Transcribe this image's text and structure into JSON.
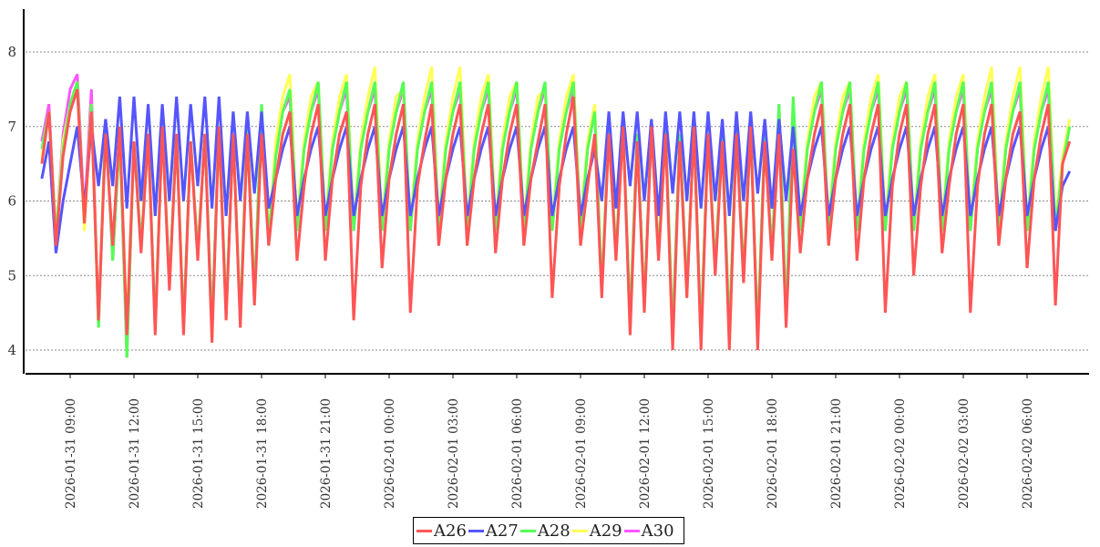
{
  "chart_data": {
    "type": "line",
    "title": "",
    "xlabel": "",
    "ylabel": "",
    "x_start": "2026-01-31 07:40",
    "x_step_minutes": 20,
    "ylim": [
      3.68,
      8.57
    ],
    "yticks": [
      "4",
      "5",
      "6",
      "7",
      "8"
    ],
    "ytick_values": [
      4,
      5,
      6,
      7,
      8
    ],
    "xticks": [
      "2026-01-31 09:00",
      "2026-01-31 12:00",
      "2026-01-31 15:00",
      "2026-01-31 18:00",
      "2026-01-31 21:00",
      "2026-02-01 00:00",
      "2026-02-01 03:00",
      "2026-02-01 06:00",
      "2026-02-01 09:00",
      "2026-02-01 12:00",
      "2026-02-01 15:00",
      "2026-02-01 18:00",
      "2026-02-01 21:00",
      "2026-02-02 00:00",
      "2026-02-02 03:00",
      "2026-02-02 06:00"
    ],
    "grid": "horizontal-dotted",
    "legend_position": "bottom-center",
    "series": [
      {
        "name": "A30",
        "color": "#ff55ff",
        "values": [
          6.8,
          7.3,
          5.5,
          6.9,
          7.5,
          7.7,
          5.8,
          7.5,
          4.3,
          7.0,
          5.2,
          6.9,
          3.9,
          6.8,
          5.4,
          6.9,
          4.3,
          7.0,
          4.9,
          6.9,
          4.3,
          6.8,
          5.3,
          6.9,
          4.3,
          7.0,
          4.5,
          6.9,
          4.4,
          7.0,
          4.7,
          7.2,
          5.5,
          6.6,
          7.2,
          7.4,
          5.6,
          6.7,
          7.2,
          7.5,
          5.6,
          6.7,
          7.2,
          7.5,
          5.6,
          6.7,
          7.2,
          7.5,
          5.6,
          6.7,
          7.2,
          7.5,
          5.6,
          6.7,
          7.2,
          7.5,
          5.6,
          6.7,
          7.2,
          7.5,
          5.6,
          6.7,
          7.2,
          7.5,
          5.6,
          6.7,
          7.2,
          7.5,
          5.6,
          6.7,
          7.2,
          7.5,
          5.6,
          6.7,
          7.2,
          7.5,
          5.6,
          6.7,
          7.2,
          4.8,
          7.0,
          5.3,
          7.0,
          4.4,
          6.9,
          4.6,
          7.0,
          5.3,
          7.0,
          4.2,
          6.9,
          4.8,
          7.0,
          4.2,
          6.9,
          5.1,
          6.9,
          4.2,
          7.0,
          5.0,
          7.0,
          4.2,
          6.9,
          5.3,
          7.3,
          4.4,
          7.3,
          5.6,
          6.7,
          7.2,
          7.5,
          5.6,
          6.7,
          7.2,
          7.5,
          5.6,
          6.7,
          7.2,
          7.5,
          5.6,
          6.7,
          7.2,
          7.5,
          5.6,
          6.7,
          7.2,
          7.5,
          5.6,
          6.7,
          7.2,
          7.5,
          5.6,
          6.7,
          7.2,
          7.5,
          5.6,
          6.7,
          7.2,
          7.5,
          5.6,
          6.7,
          7.2,
          7.5,
          5.6,
          6.5,
          7.0
        ]
      },
      {
        "name": "A29",
        "color": "#ffff55",
        "values": [
          6.6,
          7.2,
          5.5,
          6.8,
          7.3,
          7.6,
          5.6,
          7.3,
          4.4,
          7.0,
          5.3,
          6.9,
          4.3,
          6.8,
          5.4,
          6.9,
          4.3,
          7.0,
          4.9,
          6.9,
          4.3,
          6.8,
          5.3,
          6.9,
          4.2,
          7.0,
          4.5,
          6.9,
          4.4,
          7.0,
          4.7,
          7.1,
          5.5,
          6.8,
          7.4,
          7.7,
          5.7,
          6.8,
          7.4,
          7.6,
          5.7,
          6.8,
          7.4,
          7.7,
          5.7,
          6.8,
          7.4,
          7.8,
          5.7,
          6.8,
          7.4,
          7.5,
          5.7,
          6.8,
          7.4,
          7.8,
          5.7,
          6.8,
          7.4,
          7.8,
          5.7,
          6.8,
          7.4,
          7.7,
          5.7,
          6.8,
          7.4,
          7.6,
          5.7,
          6.8,
          7.4,
          7.5,
          5.7,
          6.8,
          7.4,
          7.7,
          5.7,
          6.8,
          7.3,
          4.8,
          7.0,
          5.3,
          7.0,
          4.4,
          6.9,
          4.6,
          7.0,
          5.3,
          7.0,
          4.2,
          6.9,
          4.8,
          7.0,
          4.2,
          6.9,
          5.1,
          6.9,
          4.2,
          7.0,
          5.0,
          7.0,
          4.2,
          6.9,
          5.3,
          7.2,
          4.4,
          7.3,
          5.7,
          6.8,
          7.4,
          7.6,
          5.7,
          6.8,
          7.4,
          7.6,
          5.7,
          6.8,
          7.4,
          7.7,
          5.7,
          6.8,
          7.4,
          7.6,
          5.7,
          6.8,
          7.4,
          7.7,
          5.7,
          6.8,
          7.4,
          7.7,
          5.7,
          6.8,
          7.4,
          7.8,
          5.7,
          6.8,
          7.4,
          7.8,
          5.7,
          6.8,
          7.4,
          7.8,
          5.7,
          6.6,
          7.1
        ]
      },
      {
        "name": "A28",
        "color": "#55ff55",
        "values": [
          6.7,
          7.2,
          5.5,
          6.7,
          7.3,
          7.6,
          5.7,
          7.3,
          4.3,
          7.1,
          5.2,
          6.9,
          3.9,
          6.8,
          5.4,
          6.9,
          4.3,
          7.0,
          4.9,
          6.9,
          4.3,
          6.8,
          5.3,
          6.9,
          4.3,
          7.0,
          4.5,
          6.9,
          4.4,
          7.0,
          4.7,
          7.3,
          5.5,
          6.6,
          7.2,
          7.5,
          5.6,
          6.7,
          7.2,
          7.6,
          5.6,
          6.7,
          7.2,
          7.6,
          5.6,
          6.7,
          7.2,
          7.6,
          5.6,
          6.7,
          7.2,
          7.6,
          5.6,
          6.7,
          7.2,
          7.6,
          5.6,
          6.7,
          7.2,
          7.6,
          5.6,
          6.7,
          7.2,
          7.6,
          5.6,
          6.7,
          7.2,
          7.6,
          5.6,
          6.7,
          7.2,
          7.6,
          5.6,
          6.7,
          7.2,
          7.6,
          5.6,
          6.7,
          7.2,
          4.8,
          7.0,
          5.3,
          7.0,
          4.4,
          6.9,
          4.6,
          7.0,
          5.3,
          7.0,
          4.2,
          6.9,
          4.8,
          7.0,
          4.2,
          6.9,
          5.1,
          6.9,
          4.2,
          7.0,
          5.0,
          7.0,
          4.2,
          6.9,
          5.3,
          7.3,
          4.4,
          7.4,
          5.6,
          6.7,
          7.2,
          7.6,
          5.6,
          6.7,
          7.2,
          7.6,
          5.6,
          6.7,
          7.2,
          7.6,
          5.6,
          6.7,
          7.2,
          7.6,
          5.6,
          6.7,
          7.2,
          7.6,
          5.6,
          6.7,
          7.2,
          7.6,
          5.6,
          6.7,
          7.2,
          7.6,
          5.6,
          6.7,
          7.2,
          7.6,
          5.6,
          6.7,
          7.2,
          7.6,
          5.6,
          6.5,
          7.0
        ]
      },
      {
        "name": "A27",
        "color": "#5555ff",
        "values": [
          6.3,
          6.8,
          5.3,
          6.0,
          6.5,
          7.0,
          5.9,
          7.0,
          6.2,
          7.1,
          6.2,
          7.4,
          5.9,
          7.4,
          6.0,
          7.3,
          5.8,
          7.3,
          6.0,
          7.4,
          6.0,
          7.3,
          6.2,
          7.4,
          5.9,
          7.4,
          5.8,
          7.2,
          6.0,
          7.2,
          6.1,
          7.2,
          5.9,
          6.3,
          6.7,
          7.0,
          5.8,
          6.3,
          6.7,
          7.0,
          5.8,
          6.3,
          6.7,
          7.0,
          5.8,
          6.3,
          6.7,
          7.0,
          5.8,
          6.3,
          6.7,
          7.0,
          5.8,
          6.3,
          6.7,
          7.0,
          5.8,
          6.3,
          6.7,
          7.0,
          5.8,
          6.3,
          6.7,
          7.0,
          5.8,
          6.3,
          6.7,
          7.0,
          5.8,
          6.3,
          6.7,
          7.0,
          5.8,
          6.3,
          6.7,
          7.0,
          5.8,
          6.3,
          6.7,
          6.0,
          7.2,
          5.9,
          7.2,
          6.2,
          7.2,
          6.0,
          7.1,
          5.8,
          7.2,
          6.1,
          7.2,
          6.0,
          7.2,
          5.9,
          7.2,
          6.0,
          7.1,
          5.8,
          7.2,
          6.0,
          7.2,
          6.1,
          7.1,
          5.9,
          7.1,
          6.0,
          7.0,
          5.8,
          6.3,
          6.7,
          7.0,
          5.8,
          6.3,
          6.7,
          7.0,
          5.8,
          6.3,
          6.7,
          7.0,
          5.8,
          6.3,
          6.7,
          7.0,
          5.8,
          6.3,
          6.7,
          7.0,
          5.8,
          6.3,
          6.7,
          7.0,
          5.8,
          6.3,
          6.7,
          7.0,
          5.8,
          6.3,
          6.7,
          7.0,
          5.8,
          6.3,
          6.7,
          7.0,
          5.6,
          6.2,
          6.4
        ]
      },
      {
        "name": "A26",
        "color": "#ff5555",
        "values": [
          6.5,
          7.2,
          5.4,
          6.6,
          7.2,
          7.5,
          5.7,
          7.2,
          4.4,
          6.9,
          5.4,
          7.0,
          4.2,
          6.8,
          5.3,
          6.9,
          4.2,
          7.0,
          4.8,
          6.9,
          4.2,
          6.8,
          5.2,
          6.9,
          4.1,
          7.0,
          4.4,
          6.9,
          4.3,
          6.9,
          4.6,
          6.9,
          5.4,
          6.3,
          6.9,
          7.2,
          5.2,
          6.2,
          6.9,
          7.3,
          5.2,
          6.3,
          6.9,
          7.2,
          4.4,
          6.2,
          6.9,
          7.3,
          5.1,
          6.3,
          6.9,
          7.3,
          4.5,
          6.2,
          6.8,
          7.3,
          5.4,
          6.3,
          6.9,
          7.3,
          5.4,
          6.3,
          6.9,
          7.3,
          5.3,
          6.3,
          6.9,
          7.3,
          5.4,
          6.3,
          6.8,
          7.3,
          4.7,
          6.2,
          6.9,
          7.4,
          5.4,
          6.2,
          6.9,
          4.7,
          6.9,
          5.2,
          7.0,
          4.2,
          6.8,
          4.5,
          7.0,
          5.2,
          6.9,
          4.0,
          6.8,
          4.7,
          7.0,
          4.0,
          6.9,
          5.0,
          6.8,
          4.0,
          6.9,
          4.9,
          7.0,
          4.0,
          6.8,
          5.2,
          6.9,
          4.3,
          6.7,
          5.3,
          6.3,
          6.9,
          7.3,
          5.4,
          6.3,
          6.9,
          7.3,
          5.2,
          6.3,
          6.9,
          7.3,
          4.5,
          6.2,
          6.9,
          7.3,
          5.0,
          6.2,
          6.9,
          7.3,
          5.3,
          6.2,
          6.9,
          7.3,
          4.5,
          6.2,
          6.9,
          7.3,
          5.4,
          6.3,
          6.9,
          7.2,
          5.1,
          6.3,
          6.9,
          7.3,
          4.6,
          6.5,
          6.8
        ]
      }
    ],
    "legend": [
      "A26",
      "A27",
      "A28",
      "A29",
      "A30"
    ]
  }
}
